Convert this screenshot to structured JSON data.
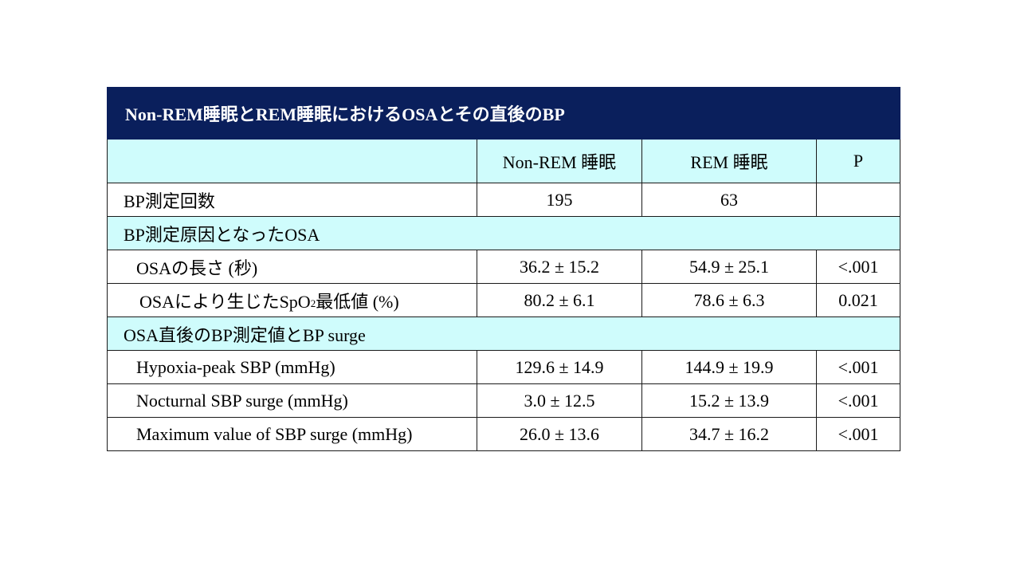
{
  "table": {
    "title": "Non-REM睡眠とREM睡眠におけるOSAとその直後のBP",
    "headers": [
      "",
      "Non-REM 睡眠",
      "REM 睡眠",
      "P"
    ],
    "rows": [
      {
        "label": "BP測定回数",
        "nrem": "195",
        "rem": "63",
        "p": ""
      },
      {
        "section": "BP測定原因となったOSA"
      },
      {
        "label": "OSAの長さ  (秒)",
        "nrem": "36.2 ± 15.2",
        "rem": "54.9 ± 25.1",
        "p": "<.001"
      },
      {
        "label_pre": "OSAにより生じたSpO",
        "label_sub": "2",
        "label_post": "最低値 (%)",
        "nrem": "80.2 ± 6.1",
        "rem": "78.6 ± 6.3",
        "p": "0.021"
      },
      {
        "section": "OSA直後のBP測定値とBP surge"
      },
      {
        "label": "Hypoxia-peak SBP (mmHg)",
        "nrem": "129.6 ± 14.9",
        "rem": "144.9 ± 19.9",
        "p": "<.001"
      },
      {
        "label": "Nocturnal SBP surge (mmHg)",
        "nrem": "3.0 ± 12.5",
        "rem": "15.2 ± 13.9",
        "p": "<.001"
      },
      {
        "label": "Maximum value of SBP surge (mmHg)",
        "nrem": "26.0 ± 13.6",
        "rem": "34.7 ± 16.2",
        "p": "<.001"
      }
    ]
  }
}
